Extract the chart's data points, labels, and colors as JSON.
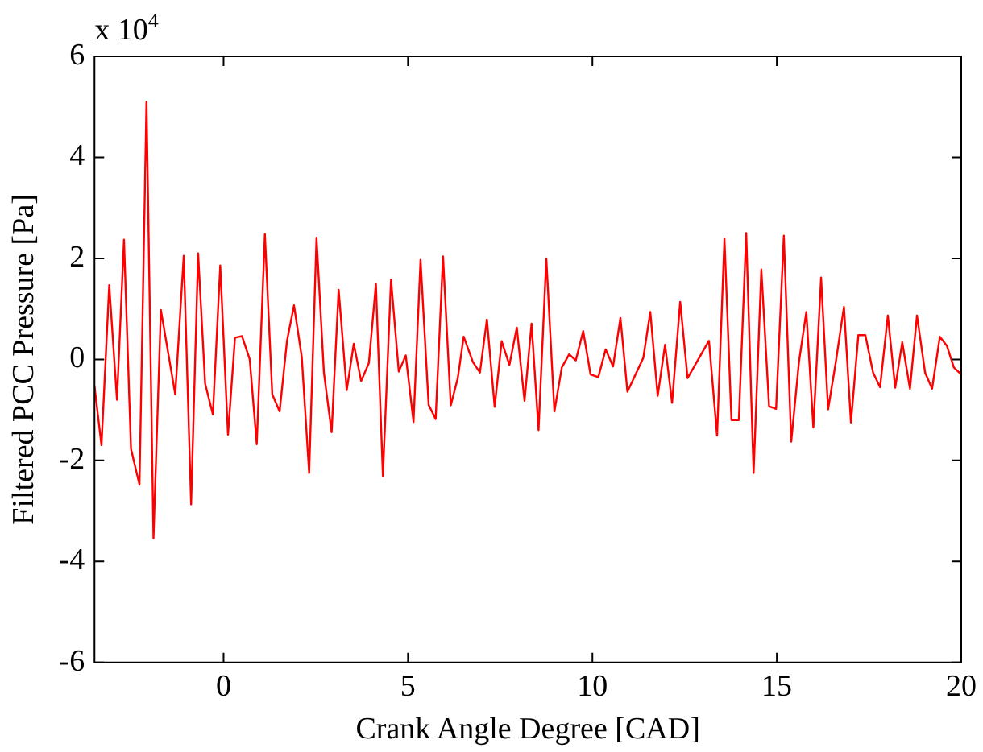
{
  "chart_data": {
    "type": "line",
    "xlabel": "Crank Angle Degree [CAD]",
    "ylabel": "Filtered PCC Pressure [Pa]",
    "annotations": [
      "x 10$^{4}$"
    ],
    "xlim": [
      -3.5,
      20
    ],
    "xticks": [
      0,
      5,
      10,
      15,
      20
    ],
    "ylim": [
      -6,
      6
    ],
    "yticks": [
      -6,
      -4,
      -2,
      0,
      2,
      4,
      6
    ],
    "legend": false,
    "series": [
      {
        "color": "#ff0000",
        "x": [
          -3.5,
          -3.31,
          -3.1,
          -2.89,
          -2.7,
          -2.51,
          -2.28,
          -2.09,
          -1.9,
          -1.7,
          -1.31,
          -1.08,
          -0.88,
          -0.69,
          -0.5,
          -0.29,
          -0.09,
          0.12,
          0.31,
          0.5,
          0.71,
          0.9,
          1.12,
          1.32,
          1.52,
          1.72,
          1.91,
          2.12,
          2.32,
          2.52,
          2.72,
          2.93,
          3.12,
          3.34,
          3.53,
          3.73,
          3.94,
          4.13,
          4.32,
          4.54,
          4.75,
          4.94,
          5.15,
          5.34,
          5.56,
          5.75,
          5.95,
          6.16,
          6.35,
          6.51,
          6.76,
          6.95,
          7.14,
          7.35,
          7.54,
          7.75,
          7.95,
          8.16,
          8.35,
          8.54,
          8.75,
          8.97,
          9.17,
          9.37,
          9.55,
          9.75,
          9.95,
          10.16,
          10.36,
          10.56,
          10.76,
          10.95,
          11.38,
          11.57,
          11.77,
          11.97,
          12.16,
          12.38,
          12.58,
          13.16,
          13.38,
          13.58,
          13.77,
          13.97,
          14.17,
          14.37,
          14.58,
          14.79,
          14.98,
          15.19,
          15.39,
          15.6,
          15.8,
          15.99,
          16.2,
          16.39,
          16.6,
          16.82,
          17.01,
          17.21,
          17.4,
          17.61,
          17.8,
          18.01,
          18.21,
          18.4,
          18.61,
          18.8,
          19.02,
          19.21,
          19.42,
          19.61,
          19.8,
          20
        ],
        "values": [
          -0.53,
          -1.7,
          1.47,
          -0.8,
          2.37,
          -1.77,
          -2.48,
          5.1,
          -3.54,
          0.98,
          -0.69,
          2.05,
          -2.87,
          2.1,
          -0.48,
          -1.09,
          1.86,
          -1.49,
          0.43,
          0.46,
          0,
          -1.68,
          2.48,
          -0.69,
          -1.03,
          0.37,
          1.07,
          0.05,
          -2.25,
          2.41,
          -0.26,
          -1.44,
          1.38,
          -0.61,
          0.31,
          -0.43,
          -0.07,
          1.49,
          -2.31,
          1.58,
          -0.24,
          0.08,
          -1.24,
          1.97,
          -0.9,
          -1.18,
          2.04,
          -0.91,
          -0.37,
          0.45,
          -0.05,
          -0.26,
          0.79,
          -0.94,
          0.36,
          -0.11,
          0.63,
          -0.82,
          0.71,
          -1.4,
          2,
          -1.03,
          -0.16,
          0.1,
          -0.02,
          0.56,
          -0.3,
          -0.35,
          0.2,
          -0.14,
          0.82,
          -0.64,
          0.03,
          0.94,
          -0.72,
          0.29,
          -0.86,
          1.14,
          -0.37,
          0.37,
          -1.51,
          2.39,
          -1.2,
          -1.2,
          2.5,
          -2.25,
          1.78,
          -0.93,
          -0.98,
          2.45,
          -1.63,
          -0.05,
          0.94,
          -1.35,
          1.62,
          -0.99,
          -0.05,
          1.04,
          -1.25,
          0.48,
          0.48,
          -0.26,
          -0.55,
          0.87,
          -0.56,
          0.34,
          -0.58,
          0.87,
          -0.26,
          -0.58,
          0.45,
          0.27,
          -0.16,
          -0.3
        ]
      }
    ]
  }
}
